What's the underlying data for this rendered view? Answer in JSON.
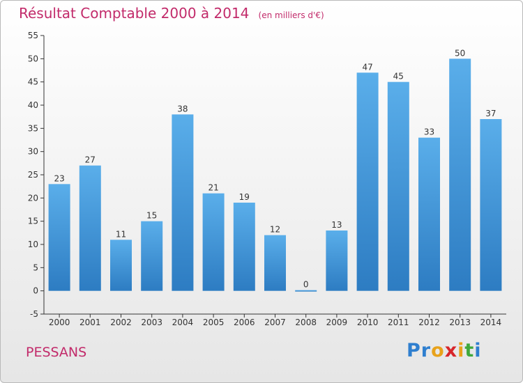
{
  "header": {
    "title": "Résultat Comptable 2000 à 2014",
    "unit": "(en milliers d'€)"
  },
  "commune": "PESSANS",
  "brand": {
    "letters": [
      {
        "ch": "P",
        "color": "#2f7fcf"
      },
      {
        "ch": "r",
        "color": "#2f7fcf"
      },
      {
        "ch": "o",
        "color": "#e8a21b"
      },
      {
        "ch": "x",
        "color": "#d7262b"
      },
      {
        "ch": "i",
        "color": "#e8a21b"
      },
      {
        "ch": "t",
        "color": "#3fa83c"
      },
      {
        "ch": "i",
        "color": "#2f7fcf"
      }
    ]
  },
  "colors": {
    "bar_light": "#5aaeea",
    "bar_dark": "#2d7cc2",
    "title": "#c22a6a"
  },
  "chart_data": {
    "type": "bar",
    "categories": [
      "2000",
      "2001",
      "2002",
      "2003",
      "2004",
      "2005",
      "2006",
      "2007",
      "2008",
      "2009",
      "2010",
      "2011",
      "2012",
      "2013",
      "2014"
    ],
    "values": [
      23,
      27,
      11,
      15,
      38,
      21,
      19,
      12,
      0,
      13,
      47,
      45,
      33,
      50,
      37
    ],
    "ylim": [
      -5,
      55
    ],
    "yticks": [
      -5,
      0,
      5,
      10,
      15,
      20,
      25,
      30,
      35,
      40,
      45,
      50,
      55
    ],
    "grid": false,
    "data_labels": true
  }
}
